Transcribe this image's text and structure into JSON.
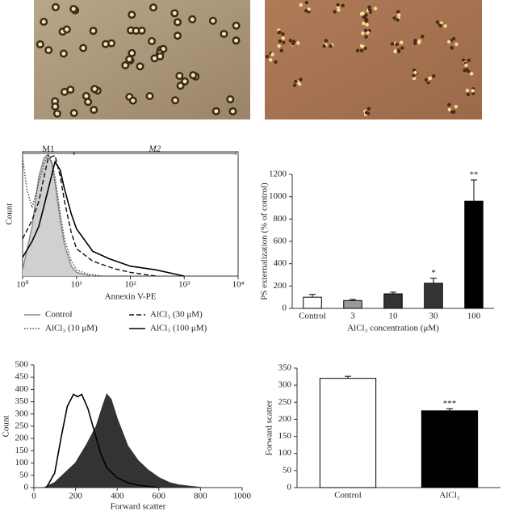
{
  "chart_data": [
    {
      "type": "line",
      "x_label": "Annexin V-PE",
      "y_label": "Count",
      "log_x": true,
      "xlim": [
        1,
        10000
      ],
      "xticks": [
        {
          "value": 1,
          "label": "10⁰"
        },
        {
          "value": 10,
          "label": "10¹"
        },
        {
          "value": 100,
          "label": "10²"
        },
        {
          "value": 1000,
          "label": "10³"
        },
        {
          "value": 10000,
          "label": "10⁴"
        }
      ],
      "ylim": [
        0,
        100
      ],
      "markers": [
        {
          "label": "M1",
          "range": [
            1,
            9
          ]
        },
        {
          "label": "M2",
          "range": [
            9,
            9000
          ]
        }
      ],
      "series": [
        {
          "name": "Control",
          "color": "#888888",
          "fill": "#d0d0d0",
          "style": "solid",
          "x": [
            1,
            1.5,
            2,
            2.5,
            3,
            3.5,
            4,
            5,
            6,
            8,
            10,
            15,
            20
          ],
          "values": [
            5,
            40,
            80,
            95,
            98,
            90,
            75,
            45,
            25,
            8,
            3,
            1,
            0
          ]
        },
        {
          "name": "AlCl₃ (10 μM)",
          "color": "#444444",
          "style": "dotted",
          "x": [
            1,
            1.2,
            1.5,
            2,
            2.5,
            3,
            3.5,
            4,
            5,
            6,
            8,
            10,
            15,
            30
          ],
          "values": [
            95,
            70,
            55,
            75,
            90,
            98,
            92,
            80,
            50,
            30,
            12,
            5,
            2,
            0
          ]
        },
        {
          "name": "AlCl₃ (30 μM)",
          "color": "#111111",
          "style": "dashed",
          "x": [
            1,
            1.5,
            2,
            2.5,
            3,
            4,
            5,
            6,
            8,
            10,
            20,
            50,
            100,
            300
          ],
          "values": [
            30,
            45,
            60,
            80,
            95,
            97,
            80,
            60,
            35,
            22,
            12,
            6,
            3,
            0
          ]
        },
        {
          "name": "AlCl₃ (100 μM)",
          "color": "#000000",
          "style": "solid",
          "x": [
            1,
            1.5,
            2,
            3,
            4,
            5,
            6,
            8,
            10,
            20,
            40,
            100,
            300,
            1000
          ],
          "values": [
            15,
            28,
            40,
            70,
            92,
            85,
            70,
            50,
            38,
            20,
            14,
            8,
            5,
            0
          ]
        }
      ]
    },
    {
      "type": "bar",
      "x_label": "AlCl₃ concentration (μM)",
      "y_label": "PS externalization (% of control)",
      "categories": [
        "Control",
        "3",
        "10",
        "30",
        "100"
      ],
      "values": [
        100,
        70,
        130,
        225,
        960
      ],
      "errors": [
        25,
        10,
        15,
        45,
        190
      ],
      "colors": [
        "#ffffff",
        "#999999",
        "#333333",
        "#333333",
        "#000000"
      ],
      "annotations": [
        null,
        null,
        null,
        "*",
        "**"
      ],
      "ylim": [
        0,
        1200
      ],
      "yticks": [
        0,
        200,
        400,
        600,
        800,
        1000,
        1200
      ]
    },
    {
      "type": "line",
      "x_label": "Forward scatter",
      "y_label": "Count",
      "xlim": [
        0,
        1000
      ],
      "xticks": [
        0,
        200,
        400,
        600,
        800,
        1000
      ],
      "ylim": [
        0,
        500
      ],
      "yticks": [
        0,
        50,
        100,
        150,
        200,
        250,
        300,
        350,
        400,
        450,
        500
      ],
      "series": [
        {
          "color": "#333333",
          "fill": "#333333",
          "style": "solid",
          "x": [
            50,
            100,
            150,
            200,
            250,
            300,
            330,
            350,
            370,
            400,
            450,
            500,
            550,
            600,
            650,
            700,
            800
          ],
          "values": [
            0,
            20,
            60,
            100,
            170,
            250,
            330,
            380,
            360,
            280,
            170,
            110,
            70,
            40,
            20,
            10,
            0
          ]
        },
        {
          "color": "#000000",
          "style": "solid",
          "x": [
            60,
            100,
            130,
            160,
            190,
            210,
            230,
            260,
            290,
            320,
            350,
            400,
            450,
            500,
            600
          ],
          "values": [
            0,
            60,
            200,
            330,
            380,
            370,
            380,
            320,
            230,
            140,
            80,
            40,
            20,
            10,
            0
          ]
        }
      ]
    },
    {
      "type": "bar",
      "y_label": "Forward scatter",
      "categories": [
        "Control",
        "AlCl₃"
      ],
      "values": [
        320,
        225
      ],
      "errors": [
        6,
        6
      ],
      "colors": [
        "#ffffff",
        "#000000"
      ],
      "annotations": [
        null,
        "***"
      ],
      "ylim": [
        0,
        350
      ],
      "yticks": [
        0,
        50,
        100,
        150,
        200,
        250,
        300,
        350
      ]
    }
  ]
}
